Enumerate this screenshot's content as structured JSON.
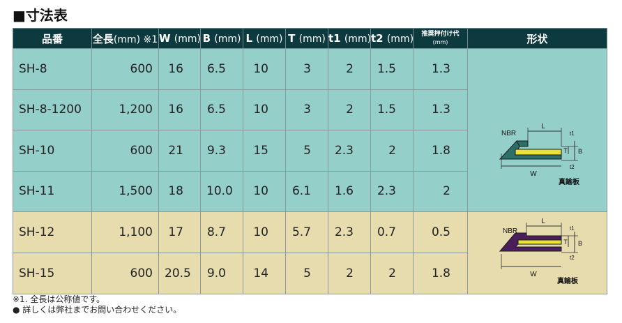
{
  "title": "■寸法表",
  "table": {
    "headers": [
      {
        "main": "品番",
        "unit": ""
      },
      {
        "main": "全長",
        "unit": "(mm) ※1"
      },
      {
        "main": "W",
        "unit": "(mm)"
      },
      {
        "main": "B",
        "unit": "(mm)"
      },
      {
        "main": "L",
        "unit": "(mm)"
      },
      {
        "main": "T",
        "unit": "(mm)"
      },
      {
        "main": "t1",
        "unit": "(mm)"
      },
      {
        "main": "t2",
        "unit": "(mm)"
      },
      {
        "main": "推奨押付け代",
        "unit": "(mm)"
      },
      {
        "main": "形状",
        "unit": ""
      }
    ],
    "rows": [
      [
        "SH-8",
        "600",
        "16",
        "6.5",
        "10",
        "3",
        "2",
        "1.5",
        "1.3"
      ],
      [
        "SH-8-1200",
        "1,200",
        "16",
        "6.5",
        "10",
        "3",
        "2",
        "1.5",
        "1.3"
      ],
      [
        "SH-10",
        "600",
        "21",
        "9.3",
        "15",
        "5",
        "2.3",
        "2",
        "1.8"
      ],
      [
        "SH-11",
        "1,500",
        "18",
        "10.0",
        "10",
        "6.1",
        "1.6",
        "2.3",
        "2"
      ],
      [
        "SH-12",
        "1,100",
        "17",
        "8.7",
        "10",
        "5.7",
        "2.3",
        "0.7",
        "0.5"
      ],
      [
        "SH-15",
        "600",
        "20.5",
        "9.0",
        "14",
        "5",
        "2",
        "2",
        "1.8"
      ]
    ]
  },
  "diagram_labels": {
    "nbr": "NBR",
    "l": "L",
    "w": "W",
    "t": "T",
    "b": "B",
    "t1": "t1",
    "t2": "t2",
    "plate": "真鍮板"
  },
  "colors": {
    "header_bg": "#0c3a3f",
    "teal_row": "#95cfca",
    "sand_row": "#e7dcae",
    "nbr_teal": "#2b6f68",
    "nbr_purple": "#4a1f5c",
    "brass": "#e8e23a"
  },
  "notes": [
    "※1. 全長は公称値です。",
    "● 詳しくは弊社までお問い合わせください。"
  ]
}
